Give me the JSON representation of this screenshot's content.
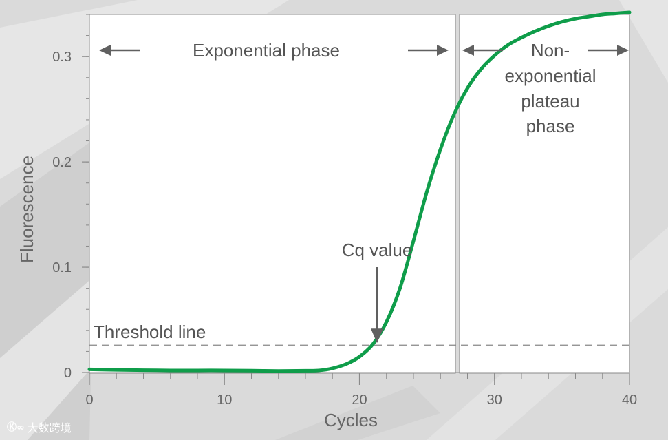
{
  "chart_data": {
    "type": "line",
    "xlabel": "Cycles",
    "ylabel": "Fluorescence",
    "xlim": [
      0,
      40
    ],
    "ylim": [
      0,
      0.34
    ],
    "x_ticks": [
      0,
      10,
      20,
      30,
      40
    ],
    "x_tick_labels": [
      "0",
      "10",
      "20",
      "30",
      "40"
    ],
    "y_ticks": [
      0,
      0.1,
      0.2,
      0.3
    ],
    "y_tick_labels": [
      "0",
      "0.1",
      "0.2",
      "0.3"
    ],
    "grid": false,
    "series": [
      {
        "color": "#0f9d4a",
        "x": [
          0,
          2,
          4,
          6,
          8,
          10,
          12,
          14,
          16,
          17,
          18,
          19,
          20,
          21,
          22,
          23,
          24,
          25,
          26,
          27,
          28,
          29,
          30,
          31,
          32,
          33,
          34,
          35,
          36,
          37,
          38,
          39,
          40
        ],
        "y": [
          0.003,
          0.0025,
          0.0022,
          0.002,
          0.002,
          0.002,
          0.0018,
          0.0015,
          0.0017,
          0.002,
          0.004,
          0.008,
          0.015,
          0.027,
          0.048,
          0.08,
          0.125,
          0.172,
          0.212,
          0.245,
          0.27,
          0.288,
          0.301,
          0.311,
          0.318,
          0.324,
          0.329,
          0.333,
          0.336,
          0.338,
          0.34,
          0.341,
          0.342
        ]
      }
    ],
    "threshold": {
      "label": "Threshold line",
      "value": 0.026
    },
    "cq_marker": {
      "label": "Cq value",
      "x": 21.3
    },
    "phase_divider_x": 27.8,
    "phases": [
      {
        "label": "Exponential phase",
        "lines": [
          "Exponential phase"
        ]
      },
      {
        "label": "Non-exponential plateau phase",
        "lines": [
          "Non-",
          "exponential",
          "plateau",
          "phase"
        ]
      }
    ]
  },
  "watermark": {
    "logo": "Ⓚ∞",
    "text": "大数跨境"
  },
  "colors": {
    "curve": "#0f9d4a",
    "axis": "#8a8a8a",
    "annotation": "#555555",
    "panel": "#ffffff"
  }
}
